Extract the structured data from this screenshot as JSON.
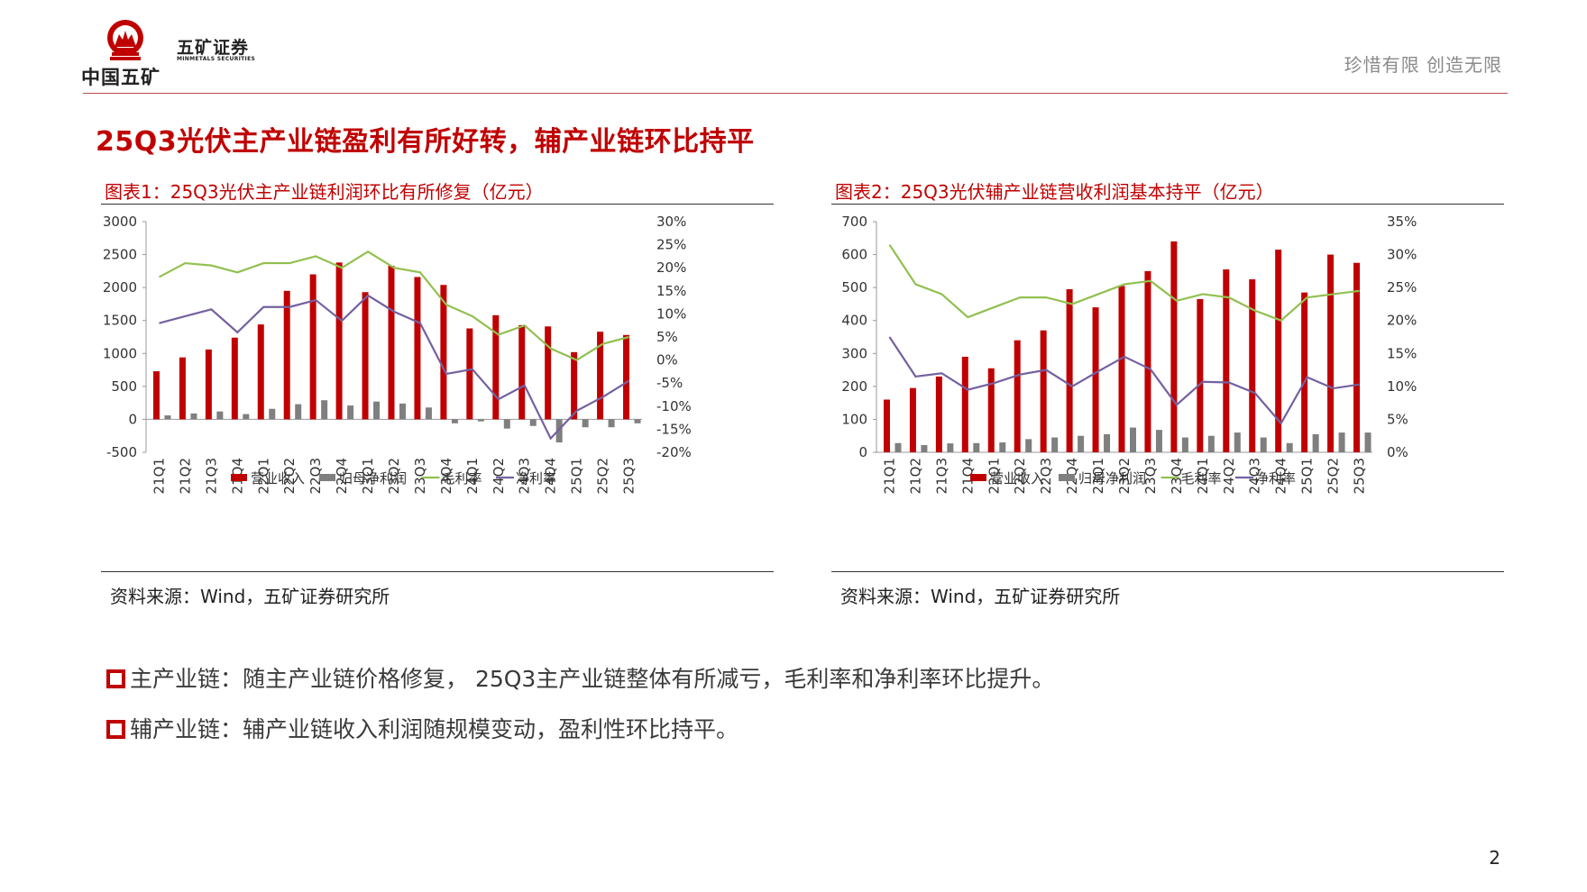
{
  "header": {
    "company_cn": "中国五矿",
    "brand_cn": "五矿证券",
    "brand_en": "MINMETALS SECURITIES",
    "slogan": "珍惜有限  创造无限"
  },
  "headline": "25Q3光伏主产业链盈利有所好转，辅产业链环比持平",
  "figures": [
    {
      "title": "图表1：25Q3光伏主产业链利润环比有所修复（亿元）",
      "source": "资料来源：Wind，五矿证券研究所"
    },
    {
      "title": "图表2：25Q3光伏辅产业链营收利润基本持平（亿元）",
      "source": "资料来源：Wind，五矿证券研究所"
    }
  ],
  "bullets": [
    "主产业链：随主产业链价格修复， 25Q3主产业链整体有所减亏，毛利率和净利率环比提升。",
    "辅产业链：辅产业链收入利润随规模变动，盈利性环比持平。"
  ],
  "page_number": "2",
  "colors": {
    "accent": "#c00000",
    "revenue": "#c00000",
    "profit": "#7f7f7f",
    "gross_margin": "#92c050",
    "net_margin": "#7460a0"
  },
  "chart_data": [
    {
      "type": "bar",
      "categories": [
        "21Q1",
        "21Q2",
        "21Q3",
        "21Q4",
        "22Q1",
        "22Q2",
        "22Q3",
        "22Q4",
        "23Q1",
        "23Q2",
        "23Q3",
        "23Q4",
        "24Q1",
        "24Q2",
        "24Q3",
        "24Q4",
        "25Q1",
        "25Q2",
        "25Q3"
      ],
      "series": [
        {
          "name": "营业收入",
          "kind": "bar",
          "axis": "left",
          "values": [
            730,
            940,
            1060,
            1240,
            1440,
            1950,
            2200,
            2380,
            1930,
            2330,
            2160,
            2040,
            1380,
            1580,
            1430,
            1410,
            1020,
            1330,
            1280
          ]
        },
        {
          "name": "归母净利润",
          "kind": "bar",
          "axis": "left",
          "values": [
            60,
            90,
            120,
            80,
            160,
            230,
            290,
            210,
            270,
            240,
            180,
            -60,
            -30,
            -140,
            -100,
            -350,
            -120,
            -120,
            -60
          ]
        },
        {
          "name": "毛利率",
          "kind": "line",
          "axis": "right",
          "values": [
            18,
            21,
            20.5,
            19,
            21,
            21,
            22.5,
            20,
            23.5,
            20,
            19,
            12,
            9.5,
            5.5,
            7.5,
            2.5,
            0,
            3.5,
            5
          ]
        },
        {
          "name": "净利率",
          "kind": "line",
          "axis": "right",
          "values": [
            8,
            9.5,
            11,
            6,
            11.5,
            11.5,
            13,
            8.5,
            14,
            10.5,
            8,
            -3,
            -2,
            -8.5,
            -5.5,
            -17,
            -11,
            -8,
            -4.5
          ]
        }
      ],
      "left_axis": {
        "ylim": [
          -500,
          3000
        ],
        "ticks": [
          "-500",
          "0",
          "500",
          "1000",
          "1500",
          "2000",
          "2500",
          "3000"
        ]
      },
      "right_axis": {
        "ylim": [
          -20,
          30
        ],
        "ticks": [
          "-20%",
          "-15%",
          "-10%",
          "-5%",
          "0%",
          "5%",
          "10%",
          "15%",
          "20%",
          "25%",
          "30%"
        ]
      },
      "legend": "bottom"
    },
    {
      "type": "bar",
      "categories": [
        "21Q1",
        "21Q2",
        "21Q3",
        "21Q4",
        "22Q1",
        "22Q2",
        "22Q3",
        "22Q4",
        "23Q1",
        "23Q2",
        "23Q3",
        "23Q4",
        "24Q1",
        "24Q2",
        "24Q3",
        "24Q4",
        "25Q1",
        "25Q2",
        "25Q3"
      ],
      "series": [
        {
          "name": "营业收入",
          "kind": "bar",
          "axis": "left",
          "values": [
            160,
            195,
            230,
            290,
            255,
            340,
            370,
            495,
            440,
            505,
            550,
            640,
            465,
            555,
            525,
            615,
            485,
            600,
            575
          ]
        },
        {
          "name": "归母净利润",
          "kind": "bar",
          "axis": "left",
          "values": [
            28,
            22,
            27,
            28,
            30,
            40,
            45,
            50,
            55,
            75,
            68,
            45,
            50,
            60,
            45,
            28,
            55,
            60,
            60
          ]
        },
        {
          "name": "毛利率",
          "kind": "line",
          "axis": "right",
          "values": [
            31.5,
            25.5,
            24,
            20.5,
            22,
            23.5,
            23.5,
            22.5,
            24,
            25.5,
            26,
            23,
            24,
            23.5,
            21.5,
            20,
            23.5,
            24,
            24.5
          ]
        },
        {
          "name": "净利率",
          "kind": "line",
          "axis": "right",
          "values": [
            17.5,
            11.5,
            12,
            9.5,
            10.5,
            11.8,
            12.5,
            10,
            12.3,
            14.5,
            12.6,
            7.2,
            10.7,
            10.6,
            9,
            4.4,
            11.4,
            9.7,
            10.3
          ]
        }
      ],
      "left_axis": {
        "ylim": [
          0,
          700
        ],
        "ticks": [
          "0",
          "100",
          "200",
          "300",
          "400",
          "500",
          "600",
          "700"
        ]
      },
      "right_axis": {
        "ylim": [
          0,
          35
        ],
        "ticks": [
          "0%",
          "5%",
          "10%",
          "15%",
          "20%",
          "25%",
          "30%",
          "35%"
        ]
      },
      "legend": "bottom"
    }
  ]
}
